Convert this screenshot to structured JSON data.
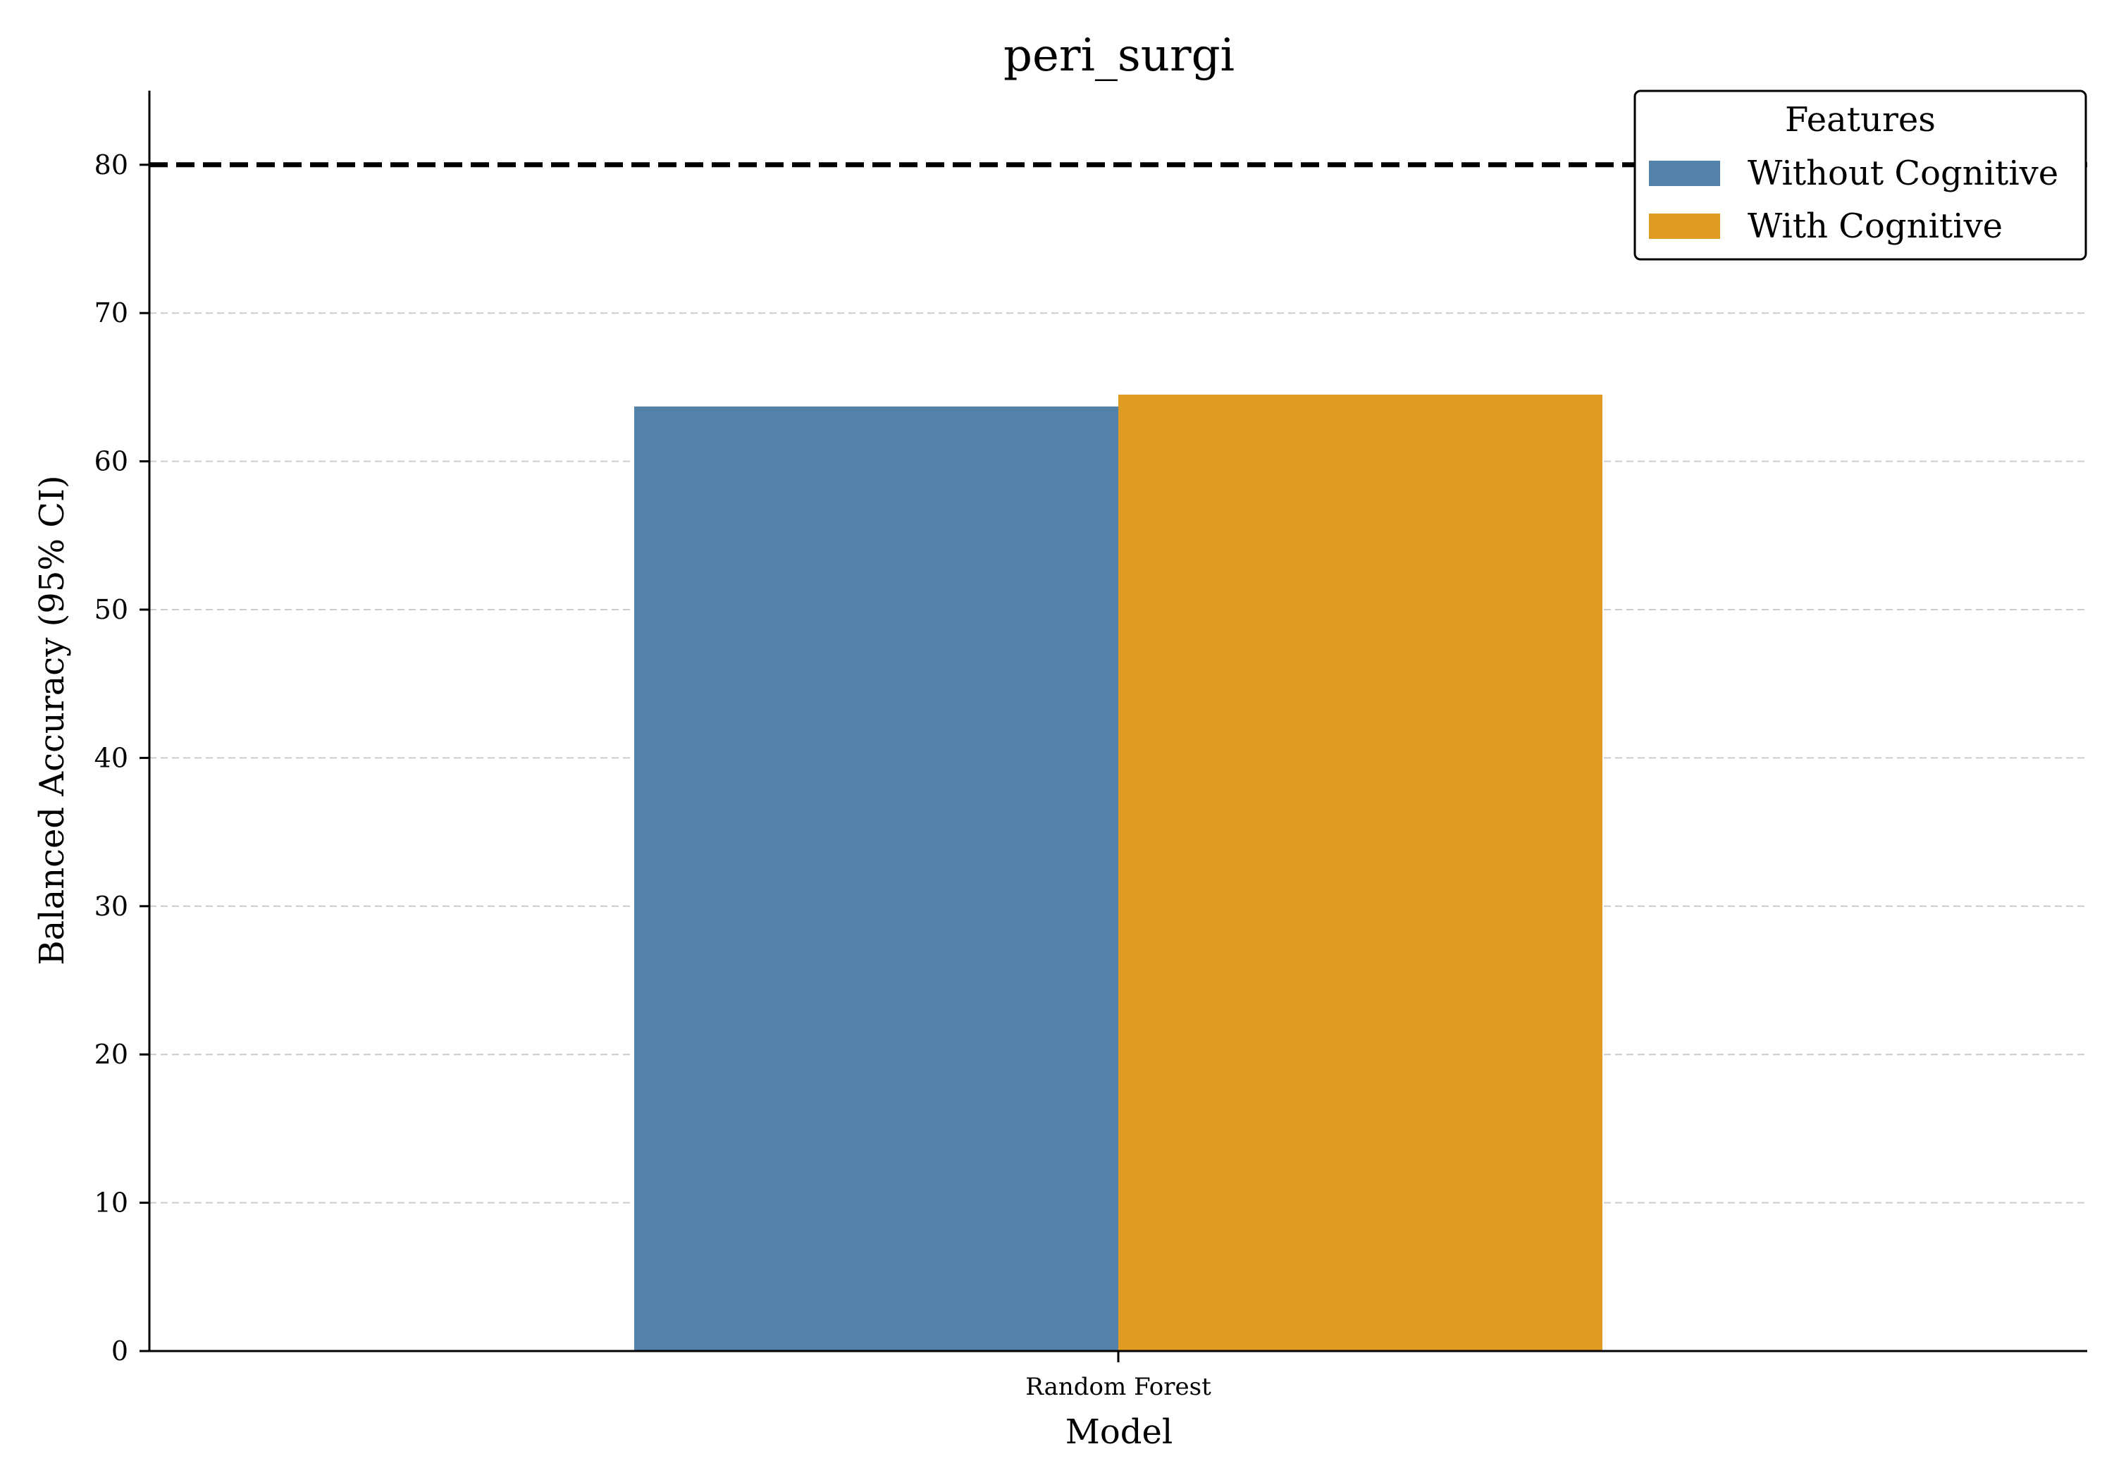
{
  "chart_data": {
    "type": "bar",
    "title": "peri_surgi",
    "xlabel": "Model",
    "ylabel": "Balanced Accuracy (95% CI)",
    "categories": [
      "Random Forest"
    ],
    "series": [
      {
        "name": "Without Cognitive",
        "values": [
          63.7
        ],
        "color": "#5381a7"
      },
      {
        "name": "With Cognitive",
        "values": [
          64.5
        ],
        "color": "#df9b22"
      }
    ],
    "ylim": [
      0,
      85
    ],
    "yticks": [
      0,
      10,
      20,
      30,
      40,
      50,
      60,
      70,
      80
    ],
    "reference_line": {
      "y": 80,
      "style": "dashed",
      "color": "#000000"
    },
    "grid": "y-dashed",
    "legend": {
      "title": "Features",
      "placement": "top-right"
    }
  }
}
